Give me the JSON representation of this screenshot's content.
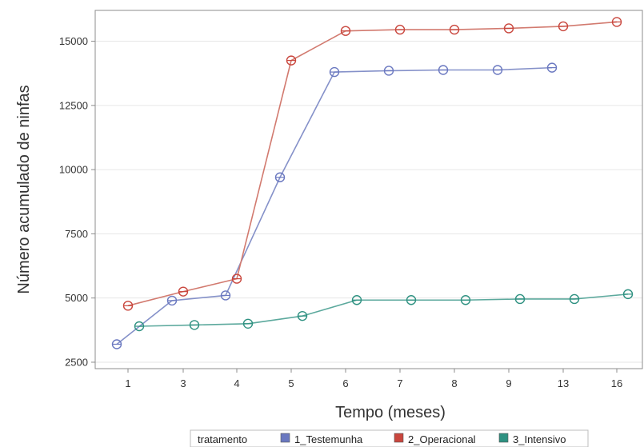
{
  "chart_data": {
    "type": "line",
    "xlabel": "Tempo (meses)",
    "ylabel": "Número acumulado de ninfas",
    "categories": [
      "1",
      "3",
      "4",
      "5",
      "6",
      "7",
      "8",
      "9",
      "13",
      "16"
    ],
    "ylim": [
      2250,
      16200
    ],
    "yticks": [
      2500,
      5000,
      7500,
      10000,
      12500,
      15000
    ],
    "grid": "horizontal",
    "legend": {
      "title": "tratamento",
      "position": "bottom"
    },
    "series": [
      {
        "name": "1_Testemunha",
        "color": "#8591c9",
        "marker_color": "#6a78c0",
        "values": [
          3200,
          4900,
          5100,
          9700,
          13800,
          13850,
          13880,
          13880,
          13970,
          null
        ]
      },
      {
        "name": "2_Operacional",
        "color": "#d27a6f",
        "marker_color": "#c9463d",
        "values": [
          4700,
          5250,
          5750,
          14250,
          15400,
          15450,
          15450,
          15500,
          15580,
          15750
        ]
      },
      {
        "name": "3_Intensivo",
        "color": "#5ca99d",
        "marker_color": "#2e9181",
        "values": [
          3900,
          3950,
          4000,
          4300,
          4920,
          4920,
          4920,
          4960,
          4960,
          5150
        ]
      }
    ]
  }
}
